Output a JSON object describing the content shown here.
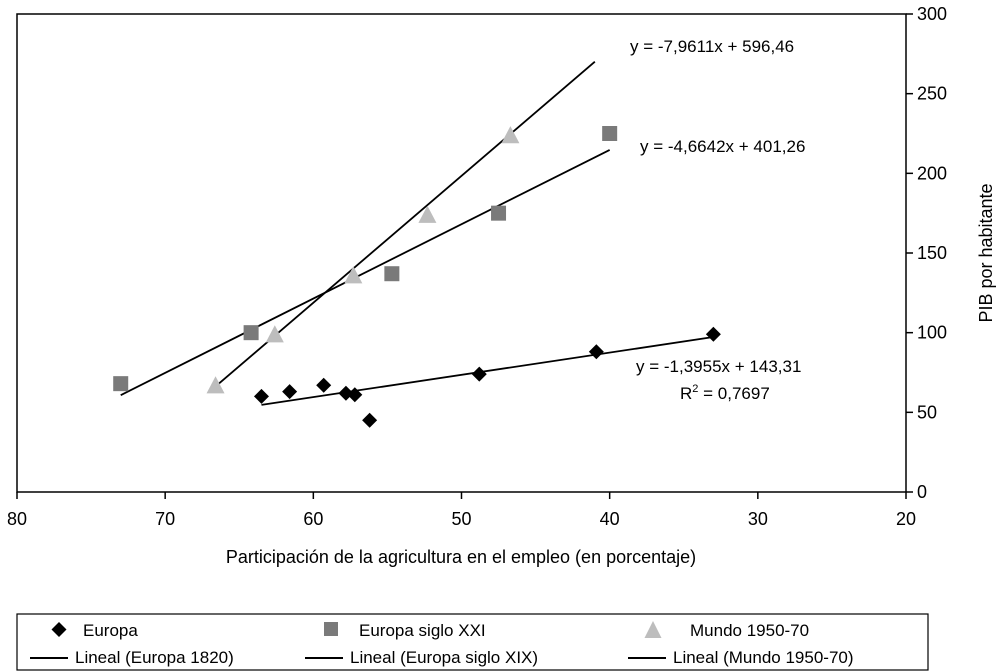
{
  "chart_data": {
    "type": "scatter",
    "title": "",
    "xlabel": "Participación de la agricultura en el empleo (en porcentaje)",
    "ylabel": "PIB por habitante",
    "xlim": [
      80,
      20
    ],
    "ylim": [
      0,
      300
    ],
    "x_reversed": true,
    "x_ticks": [
      80,
      70,
      60,
      50,
      40,
      30,
      20
    ],
    "y_ticks": [
      0,
      50,
      100,
      150,
      200,
      250,
      300
    ],
    "y_axis_side": "right",
    "grid": false,
    "legend_placement": "bottom",
    "series": [
      {
        "name": "Europa",
        "marker": "diamond",
        "color": "#000000",
        "points": [
          [
            63.5,
            60
          ],
          [
            61.6,
            63
          ],
          [
            59.3,
            67
          ],
          [
            57.8,
            62
          ],
          [
            57.2,
            61
          ],
          [
            56.2,
            45
          ],
          [
            48.8,
            74
          ],
          [
            40.9,
            88
          ],
          [
            33.0,
            99
          ]
        ]
      },
      {
        "name": "Europa siglo XXI",
        "marker": "square",
        "color": "#7a7a7a",
        "points": [
          [
            73.0,
            68
          ],
          [
            64.2,
            100
          ],
          [
            54.7,
            137
          ],
          [
            47.5,
            175
          ],
          [
            40.0,
            225
          ]
        ]
      },
      {
        "name": "Mundo 1950-70",
        "marker": "triangle",
        "color": "#bdbdbd",
        "points": [
          [
            66.6,
            67
          ],
          [
            62.6,
            99
          ],
          [
            57.3,
            136
          ],
          [
            52.3,
            174
          ],
          [
            46.7,
            224
          ]
        ]
      }
    ],
    "trendlines": [
      {
        "name": "Lineal (Europa 1820)",
        "color": "#000000",
        "x_range": [
          63.5,
          33.0
        ],
        "slope": -1.3955,
        "intercept": 143.31,
        "equation": "y = -1,3955x + 143,31",
        "r2_prefix": "R",
        "r2_sup": "2",
        "r2_value": " = 0,7697"
      },
      {
        "name": "Lineal (Europa siglo XIX)",
        "color": "#000000",
        "x_range": [
          73.0,
          40.0
        ],
        "slope": -4.6642,
        "intercept": 401.26,
        "equation": "y = -4,6642x + 401,26"
      },
      {
        "name": "Lineal (Mundo 1950-70)",
        "color": "#000000",
        "x_range": [
          66.6,
          41.0
        ],
        "slope": -7.9611,
        "intercept": 596.46,
        "equation": "y = -7,9611x + 596,46"
      }
    ]
  }
}
